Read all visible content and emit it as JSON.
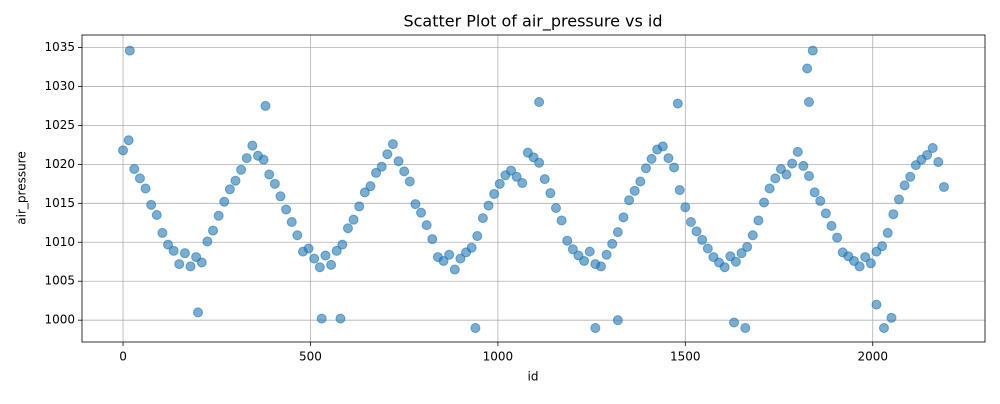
{
  "chart_data": {
    "type": "scatter",
    "title": "Scatter Plot of air_pressure vs id",
    "x_label": "id",
    "y_label": "air_pressure",
    "series": [
      {
        "color": "#1f77b4",
        "x": [
          0,
          15,
          30,
          45,
          60,
          75,
          90,
          105,
          120,
          135,
          150,
          165,
          180,
          195,
          210,
          225,
          240,
          255,
          270,
          285,
          300,
          315,
          330,
          345,
          360,
          375,
          390,
          405,
          420,
          435,
          450,
          465,
          480,
          495,
          510,
          525,
          540,
          555,
          570,
          585,
          600,
          615,
          630,
          645,
          660,
          675,
          690,
          705,
          720,
          735,
          750,
          765,
          780,
          795,
          810,
          825,
          840,
          855,
          870,
          885,
          900,
          915,
          930,
          945,
          960,
          975,
          990,
          1005,
          1020,
          1035,
          1050,
          1065,
          1080,
          1095,
          1110,
          1125,
          1140,
          1155,
          1170,
          1185,
          1200,
          1215,
          1230,
          1245,
          1260,
          1275,
          1290,
          1305,
          1320,
          1335,
          1350,
          1365,
          1380,
          1395,
          1410,
          1425,
          1440,
          1455,
          1470,
          1485,
          1500,
          1515,
          1530,
          1545,
          1560,
          1575,
          1590,
          1605,
          1620,
          1635,
          1650,
          1665,
          1680,
          1695,
          1710,
          1725,
          1740,
          1755,
          1770,
          1785,
          1800,
          1815,
          1830,
          1845,
          1860,
          1875,
          1890,
          1905,
          1920,
          1935,
          1950,
          1965,
          1980,
          1995,
          2010,
          2025,
          2040,
          2055,
          2070,
          2085,
          2100,
          2115,
          2130,
          2145,
          2160,
          2175,
          2190,
          18,
          1840,
          1825,
          1830,
          1110,
          380,
          1480,
          200,
          530,
          580,
          940,
          1260,
          1320,
          1630,
          1660,
          2030,
          2050,
          2010
        ],
        "values": [
          1021.8,
          1023.1,
          1019.4,
          1018.2,
          1016.9,
          1014.8,
          1013.5,
          1011.2,
          1009.7,
          1008.9,
          1007.2,
          1008.6,
          1006.9,
          1008.1,
          1007.4,
          1010.1,
          1011.5,
          1013.4,
          1015.2,
          1016.8,
          1017.9,
          1019.3,
          1020.8,
          1022.4,
          1021.1,
          1020.6,
          1018.7,
          1017.5,
          1015.9,
          1014.2,
          1012.6,
          1010.9,
          1008.8,
          1009.2,
          1007.9,
          1006.8,
          1008.3,
          1007.1,
          1008.9,
          1009.7,
          1011.8,
          1012.9,
          1014.6,
          1016.4,
          1017.2,
          1018.9,
          1019.7,
          1021.3,
          1022.6,
          1020.4,
          1019.1,
          1017.8,
          1014.9,
          1013.8,
          1012.2,
          1010.4,
          1008.1,
          1007.6,
          1008.4,
          1006.5,
          1007.9,
          1008.7,
          1009.3,
          1010.8,
          1013.1,
          1014.7,
          1016.2,
          1017.5,
          1018.6,
          1019.2,
          1018.4,
          1017.6,
          1021.5,
          1020.9,
          1020.2,
          1018.1,
          1016.3,
          1014.4,
          1012.8,
          1010.2,
          1009.1,
          1008.3,
          1007.6,
          1008.8,
          1007.2,
          1006.9,
          1008.4,
          1009.8,
          1011.3,
          1013.2,
          1015.4,
          1016.6,
          1017.8,
          1019.5,
          1020.7,
          1021.9,
          1022.3,
          1020.8,
          1019.6,
          1016.7,
          1014.5,
          1012.6,
          1011.4,
          1010.3,
          1009.2,
          1008.1,
          1007.4,
          1006.8,
          1008.2,
          1007.5,
          1008.6,
          1009.4,
          1010.9,
          1012.8,
          1015.1,
          1016.9,
          1018.2,
          1019.4,
          1018.7,
          1020.1,
          1021.6,
          1019.8,
          1018.5,
          1016.4,
          1015.3,
          1013.7,
          1012.1,
          1010.6,
          1008.7,
          1008.2,
          1007.6,
          1006.9,
          1008.1,
          1007.3,
          1008.8,
          1009.5,
          1011.2,
          1013.6,
          1015.5,
          1017.3,
          1018.4,
          1019.9,
          1020.6,
          1021.2,
          1022.1,
          1020.3,
          1017.1,
          1034.6,
          1034.6,
          1032.3,
          1028,
          1028,
          1027.5,
          1027.8,
          1001,
          1000.2,
          1000.2,
          999,
          999,
          1000,
          999.7,
          999,
          999,
          1000.3,
          1002
        ]
      }
    ],
    "xlim": [
      -109.5,
      2299.5
    ],
    "xticks": [
      0,
      500,
      1000,
      1500,
      2000
    ],
    "ylim": [
      997.2,
      1036.6
    ],
    "yticks": [
      1000,
      1005,
      1010,
      1015,
      1020,
      1025,
      1030,
      1035
    ],
    "grid": true
  }
}
